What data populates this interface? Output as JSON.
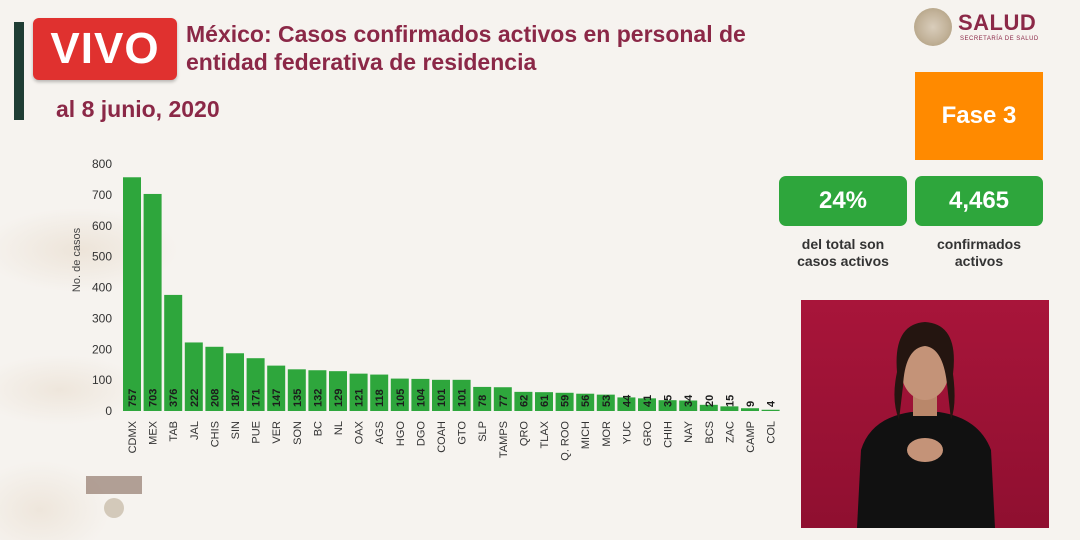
{
  "header": {
    "live_label": "VIVO",
    "title_line1": "México: Casos confirmados activos en personal de",
    "title_line2": "entidad federativa de residencia",
    "date_label": "al 8 junio, 2020"
  },
  "logo": {
    "name": "SALUD",
    "subtitle": "SECRETARÍA DE SALUD"
  },
  "phase": {
    "label": "Fase 3",
    "color": "#ff8a00"
  },
  "stats": [
    {
      "value": "24%",
      "caption_line1": "del total son",
      "caption_line2": "casos activos"
    },
    {
      "value": "4,465",
      "caption_line1": "confirmados",
      "caption_line2": "activos"
    }
  ],
  "colors": {
    "title": "#8b2847",
    "bar": "#2ea63c",
    "live": "#e0312f"
  },
  "chart_data": {
    "type": "bar",
    "title": "",
    "xlabel": "",
    "ylabel": "No. de casos",
    "ylim": [
      0,
      800
    ],
    "yticks": [
      0,
      100,
      200,
      300,
      400,
      500,
      600,
      700,
      800
    ],
    "grid": false,
    "categories": [
      "CDMX",
      "MEX",
      "TAB",
      "JAL",
      "CHIS",
      "SIN",
      "PUE",
      "VER",
      "SON",
      "BC",
      "NL",
      "OAX",
      "AGS",
      "HGO",
      "DGO",
      "COAH",
      "GTO",
      "SLP",
      "TAMPS",
      "QRO",
      "TLAX",
      "Q. ROO",
      "MICH",
      "MOR",
      "YUC",
      "GRO",
      "CHIH",
      "NAY",
      "BCS",
      "ZAC",
      "CAMP",
      "COL"
    ],
    "values": [
      757,
      703,
      376,
      222,
      208,
      187,
      171,
      147,
      135,
      132,
      129,
      121,
      118,
      105,
      104,
      101,
      101,
      78,
      77,
      62,
      61,
      59,
      56,
      53,
      44,
      41,
      35,
      34,
      20,
      15,
      9,
      4
    ]
  }
}
